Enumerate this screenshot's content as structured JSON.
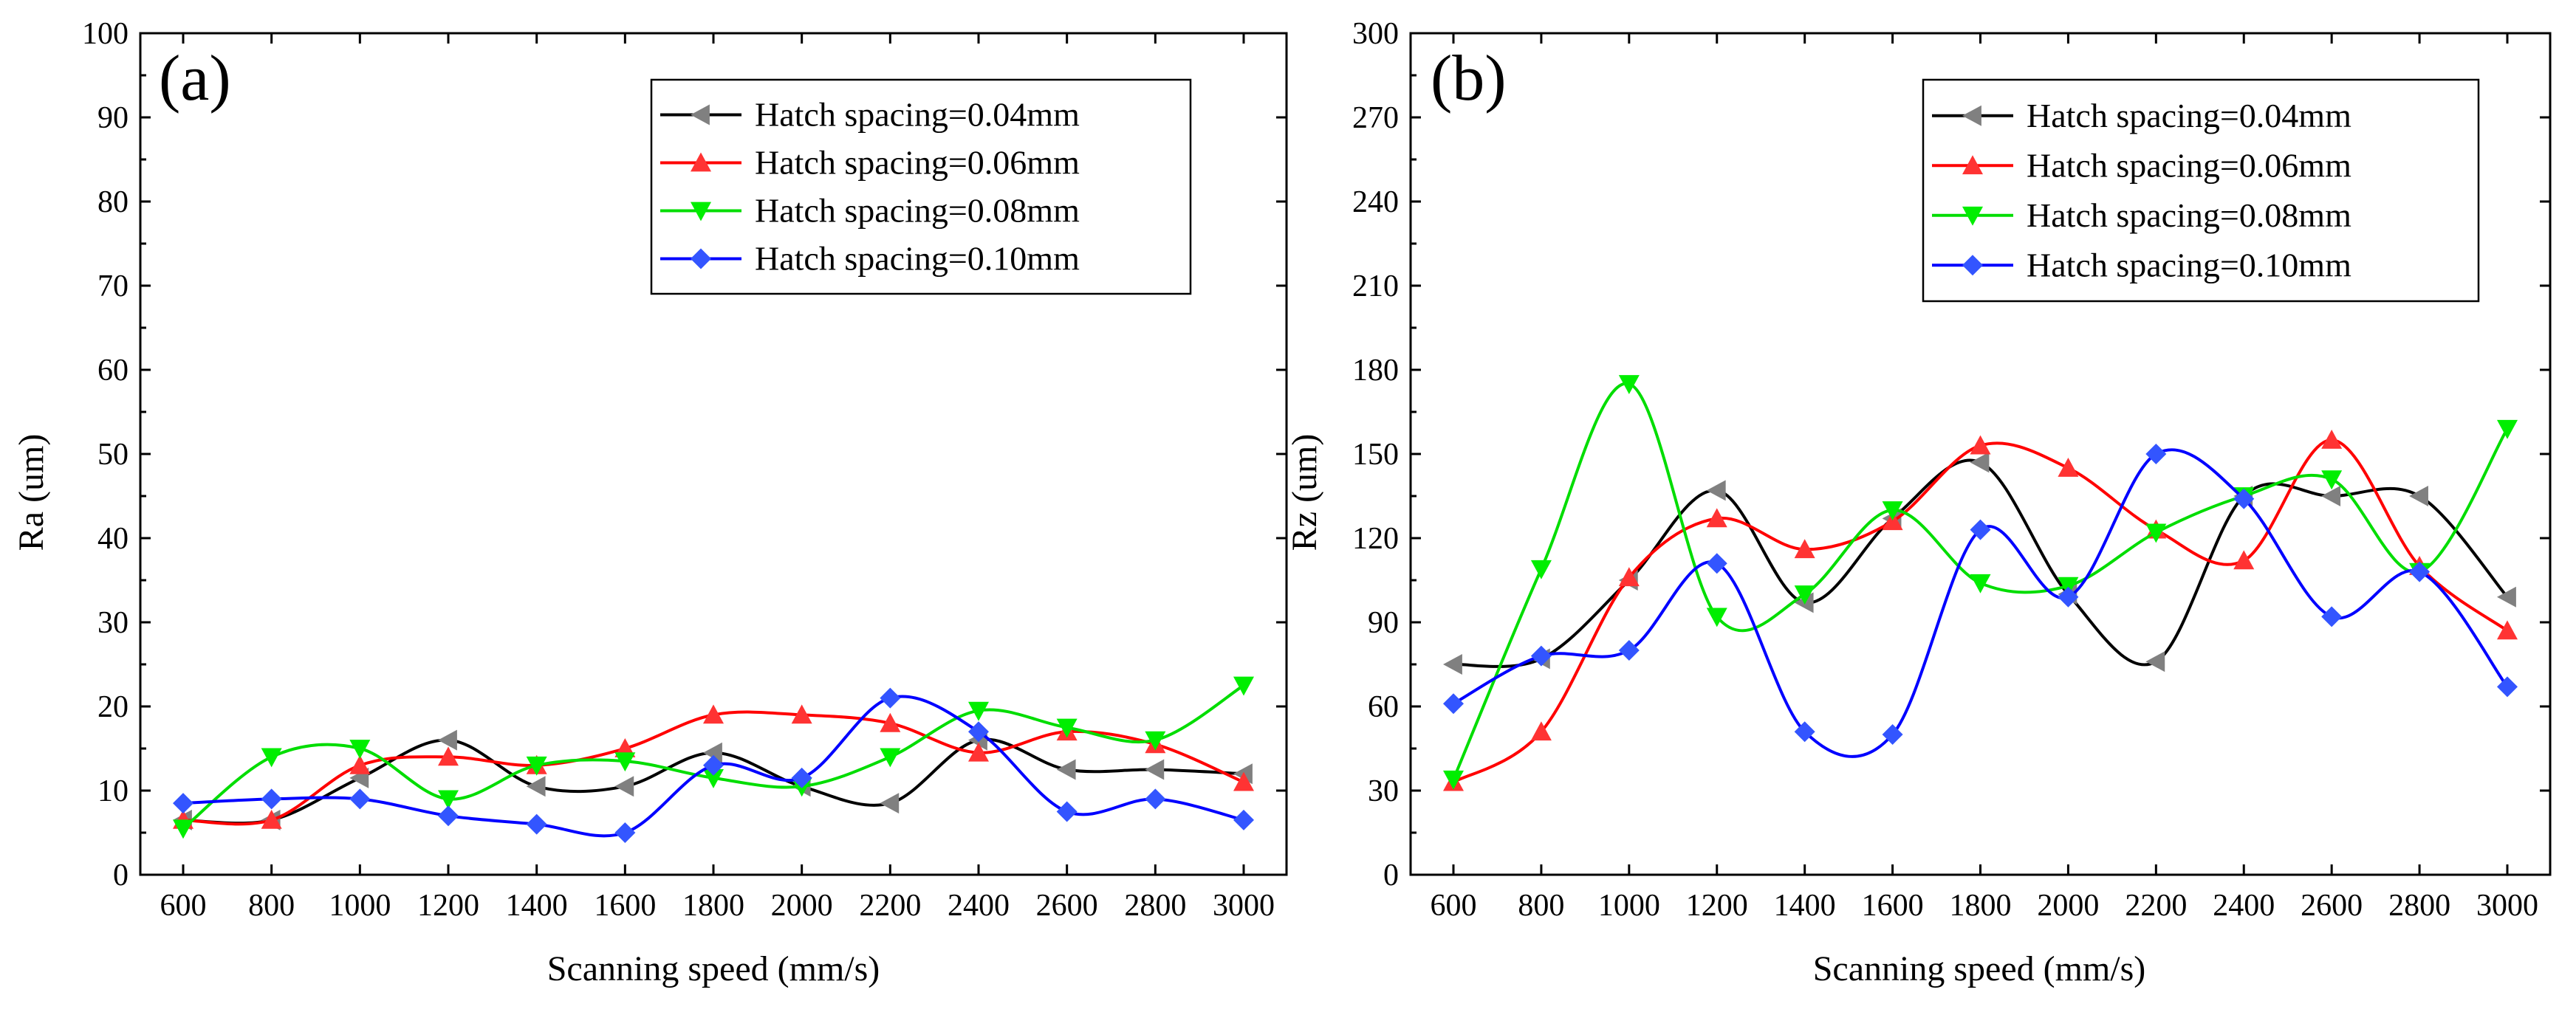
{
  "chart_data": [
    {
      "type": "line",
      "panel_label": "(a)",
      "title": "",
      "xlabel": "Scanning speed (mm/s)",
      "ylabel": "Ra (um)",
      "x": [
        600,
        800,
        1000,
        1200,
        1400,
        1600,
        1800,
        2000,
        2200,
        2400,
        2600,
        2800,
        3000
      ],
      "x_tick_labels": [
        "600",
        "800",
        "1000",
        "1200",
        "1400",
        "1600",
        "1800",
        "2000",
        "2200",
        "2400",
        "2600",
        "2800",
        "3000"
      ],
      "ylim": [
        0,
        100
      ],
      "y_ticks": [
        0,
        10,
        20,
        30,
        40,
        50,
        60,
        70,
        80,
        90,
        100
      ],
      "legend_position": "top-right",
      "series": [
        {
          "name": "Hatch spacing=0.04mm",
          "color": "#000000",
          "marker_color": "#808080",
          "marker": "triangle-left",
          "values": [
            6.5,
            6.5,
            11.5,
            16,
            10.5,
            10.5,
            14.5,
            10.5,
            8.5,
            16,
            12.5,
            12.5,
            12
          ]
        },
        {
          "name": "Hatch spacing=0.06mm",
          "color": "#ff0000",
          "marker_color": "#ff3333",
          "marker": "triangle-up",
          "values": [
            6.5,
            6.5,
            13,
            14,
            13,
            15,
            19,
            19,
            18,
            14.5,
            17,
            15.5,
            11
          ]
        },
        {
          "name": "Hatch spacing=0.08mm",
          "color": "#00dd00",
          "marker_color": "#00ee00",
          "marker": "triangle-down",
          "values": [
            5.5,
            14,
            15,
            9,
            13,
            13.5,
            11.5,
            10.5,
            14,
            19.5,
            17.5,
            16,
            22.5
          ]
        },
        {
          "name": "Hatch spacing=0.10mm",
          "color": "#0000ff",
          "marker_color": "#3355ff",
          "marker": "diamond",
          "values": [
            8.5,
            9,
            9,
            7,
            6,
            5,
            13,
            11.5,
            21,
            17,
            7.5,
            9,
            6.5
          ]
        }
      ]
    },
    {
      "type": "line",
      "panel_label": "(b)",
      "title": "",
      "xlabel": "Scanning speed (mm/s)",
      "ylabel": "Rz (um)",
      "x": [
        600,
        800,
        1000,
        1200,
        1400,
        1600,
        1800,
        2000,
        2200,
        2400,
        2600,
        2800,
        3000
      ],
      "x_tick_labels": [
        "600",
        "800",
        "1000",
        "1200",
        "1400",
        "1600",
        "1800",
        "2000",
        "2200",
        "2400",
        "2600",
        "2800",
        "3000"
      ],
      "ylim": [
        0,
        300
      ],
      "y_ticks": [
        0,
        30,
        60,
        90,
        120,
        150,
        180,
        210,
        240,
        270,
        300
      ],
      "legend_position": "top-right",
      "series": [
        {
          "name": "Hatch spacing=0.04mm",
          "color": "#000000",
          "marker_color": "#808080",
          "marker": "triangle-left",
          "values": [
            75,
            77,
            105,
            137,
            97,
            127,
            147,
            100,
            76,
            135,
            135,
            135,
            99
          ]
        },
        {
          "name": "Hatch spacing=0.06mm",
          "color": "#ff0000",
          "marker_color": "#ff3333",
          "marker": "triangle-up",
          "values": [
            33,
            51,
            106,
            127,
            116,
            126,
            153,
            145,
            123,
            112,
            155,
            110,
            87
          ]
        },
        {
          "name": "Hatch spacing=0.08mm",
          "color": "#00dd00",
          "marker_color": "#00ee00",
          "marker": "triangle-down",
          "values": [
            34,
            109,
            175,
            92,
            100,
            130,
            104,
            103,
            122,
            135,
            141,
            108,
            159
          ]
        },
        {
          "name": "Hatch spacing=0.10mm",
          "color": "#0000ff",
          "marker_color": "#3355ff",
          "marker": "diamond",
          "values": [
            61,
            78,
            80,
            111,
            51,
            50,
            123,
            99,
            150,
            134,
            92,
            108,
            67
          ]
        }
      ]
    }
  ]
}
